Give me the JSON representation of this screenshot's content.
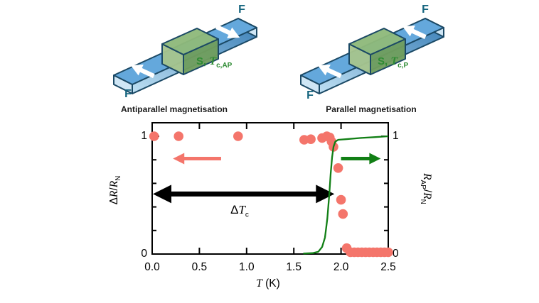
{
  "figure": {
    "devices": {
      "antiparallel": {
        "f_top": "F",
        "f_bottom": "F",
        "layer_prefix": "S, ",
        "layer_t": "T",
        "layer_sub": "c,AP",
        "caption": "Antiparallel magnetisation",
        "arrow_directions": [
          "left-up",
          "right-down"
        ]
      },
      "parallel": {
        "f_top": "F",
        "f_bottom": "F",
        "layer_prefix": "S, ",
        "layer_t": "T",
        "layer_sub": "c,P",
        "caption": "Parallel magnetisation",
        "arrow_directions": [
          "left-up",
          "left-up"
        ]
      }
    }
  },
  "chart_data": {
    "type": "scatter+line",
    "title": "",
    "xlabel": "T (K)",
    "xlabel_parts": {
      "t": "T",
      "unit": " (K)"
    },
    "ylabel_left": "ΔR/R_N",
    "ylabel_left_parts": {
      "delta": "Δ",
      "r1": "R",
      "slash": "/",
      "r2": "R",
      "sub": "N"
    },
    "ylabel_right": "R_AP/R_N",
    "ylabel_right_parts": {
      "r1": "R",
      "sub1": "AP",
      "slash": "/",
      "r2": "R",
      "sub2": "N"
    },
    "xlim": [
      0,
      2.5
    ],
    "ylim": [
      0,
      1.11
    ],
    "grid": false,
    "legend": "none",
    "x_ticks": [
      {
        "v": 0.0,
        "label": "0.0"
      },
      {
        "v": 0.5,
        "label": "0.5"
      },
      {
        "v": 1.0,
        "label": "1.0"
      },
      {
        "v": 1.5,
        "label": "1.5"
      },
      {
        "v": 2.0,
        "label": "2.0"
      },
      {
        "v": 2.5,
        "label": "2.5"
      }
    ],
    "x_top_ticks": [
      0.5,
      1.0,
      1.5,
      2.0
    ],
    "y_ticks": {
      "majors": [
        {
          "v": 1,
          "label": "1"
        },
        {
          "v": 0,
          "label": "0"
        }
      ],
      "minors": [
        0.2,
        0.4,
        0.6,
        0.8
      ]
    },
    "series": [
      {
        "name": "ΔR/R_N (antiparallel minus parallel resistance, red dots, left axis)",
        "type": "scatter",
        "color": "#f4756b",
        "points": [
          [
            0.02,
            1.0
          ],
          [
            0.28,
            1.0
          ],
          [
            0.91,
            1.0
          ],
          [
            1.61,
            0.97
          ],
          [
            1.68,
            0.975
          ],
          [
            1.8,
            0.985
          ],
          [
            1.85,
            1.0
          ],
          [
            1.88,
            0.99
          ],
          [
            1.9,
            0.955
          ],
          [
            1.92,
            0.91
          ],
          [
            1.97,
            0.73
          ],
          [
            2.0,
            0.46
          ],
          [
            2.02,
            0.34
          ],
          [
            2.06,
            0.05
          ],
          [
            2.1,
            0.015
          ],
          [
            2.14,
            0.015
          ],
          [
            2.18,
            0.015
          ],
          [
            2.22,
            0.015
          ],
          [
            2.26,
            0.015
          ],
          [
            2.3,
            0.015
          ],
          [
            2.34,
            0.015
          ],
          [
            2.38,
            0.015
          ],
          [
            2.42,
            0.015
          ],
          [
            2.46,
            0.015
          ],
          [
            2.5,
            0.015
          ]
        ]
      },
      {
        "name": "R_AP/R_N (green superconducting transition curve, right axis)",
        "type": "line",
        "color": "#117f15",
        "points": [
          [
            1.6,
            0.004
          ],
          [
            1.7,
            0.008
          ],
          [
            1.76,
            0.02
          ],
          [
            1.8,
            0.06
          ],
          [
            1.83,
            0.14
          ],
          [
            1.855,
            0.3
          ],
          [
            1.875,
            0.5
          ],
          [
            1.89,
            0.68
          ],
          [
            1.905,
            0.82
          ],
          [
            1.92,
            0.91
          ],
          [
            1.94,
            0.955
          ],
          [
            1.97,
            0.97
          ],
          [
            2.05,
            0.975
          ],
          [
            2.2,
            0.985
          ],
          [
            2.35,
            0.992
          ],
          [
            2.5,
            1.0
          ]
        ]
      }
    ],
    "annotations": {
      "black_double_arrow": {
        "x_start": 0.0,
        "x_end": 1.93,
        "y": 0.51,
        "label": "ΔTc",
        "label_parts": {
          "delta": "Δ",
          "t": "T",
          "sub": "c"
        }
      },
      "red_left_arrow": {
        "x_tail": 0.73,
        "x_tip": 0.22,
        "y": 0.81,
        "points_to": "left axis"
      },
      "green_right_arrow": {
        "x_tail": 2.0,
        "x_tip": 2.42,
        "y": 0.81,
        "points_to": "right axis"
      }
    }
  },
  "colors": {
    "red_series": "#f4756b",
    "green_series": "#117f15",
    "device_blue_top": "#64a8dc",
    "device_blue_cap": "#cfe6f5",
    "device_green_top": "#8fb97b",
    "device_green_front": "#6f9d5e",
    "device_green_cap": "#a6c48e",
    "device_outline": "#1b4965",
    "f_label_text": "#14647e",
    "s_label_text": "#2e8b33",
    "caption_text": "#1a1a1a",
    "axis_text": "#000000"
  }
}
